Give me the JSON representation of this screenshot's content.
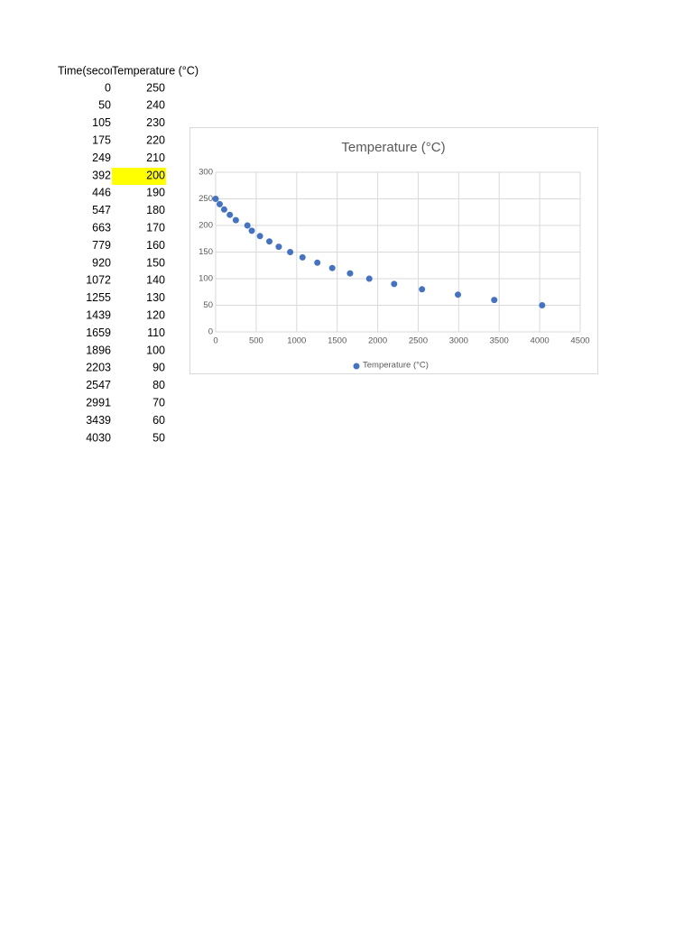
{
  "table": {
    "header": [
      "Time(seconds)",
      "Temperature (°C)"
    ],
    "rows": [
      [
        0,
        250
      ],
      [
        50,
        240
      ],
      [
        105,
        230
      ],
      [
        175,
        220
      ],
      [
        249,
        210
      ],
      [
        392,
        200
      ],
      [
        446,
        190
      ],
      [
        547,
        180
      ],
      [
        663,
        170
      ],
      [
        779,
        160
      ],
      [
        920,
        150
      ],
      [
        1072,
        140
      ],
      [
        1255,
        130
      ],
      [
        1439,
        120
      ],
      [
        1659,
        110
      ],
      [
        1896,
        100
      ],
      [
        2203,
        90
      ],
      [
        2547,
        80
      ],
      [
        2991,
        70
      ],
      [
        3439,
        60
      ],
      [
        4030,
        50
      ]
    ]
  },
  "chart_data": {
    "type": "scatter",
    "title": "Temperature (°C)",
    "x": [
      0,
      50,
      105,
      175,
      249,
      392,
      446,
      547,
      663,
      779,
      920,
      1072,
      1255,
      1439,
      1659,
      1896,
      2203,
      2547,
      2991,
      3439,
      4030
    ],
    "series": [
      {
        "name": "Temperature (°C)",
        "color": "#4472c4",
        "values": [
          250,
          240,
          230,
          220,
          210,
          200,
          190,
          180,
          170,
          160,
          150,
          140,
          130,
          120,
          110,
          100,
          90,
          80,
          70,
          60,
          50
        ]
      }
    ],
    "xlim": [
      0,
      4500
    ],
    "xticks": [
      0,
      500,
      1000,
      1500,
      2000,
      2500,
      3000,
      3500,
      4000,
      4500
    ],
    "ylim": [
      0,
      300
    ],
    "yticks": [
      0,
      50,
      100,
      150,
      200,
      250,
      300
    ],
    "grid": true,
    "legend": "bottom"
  }
}
